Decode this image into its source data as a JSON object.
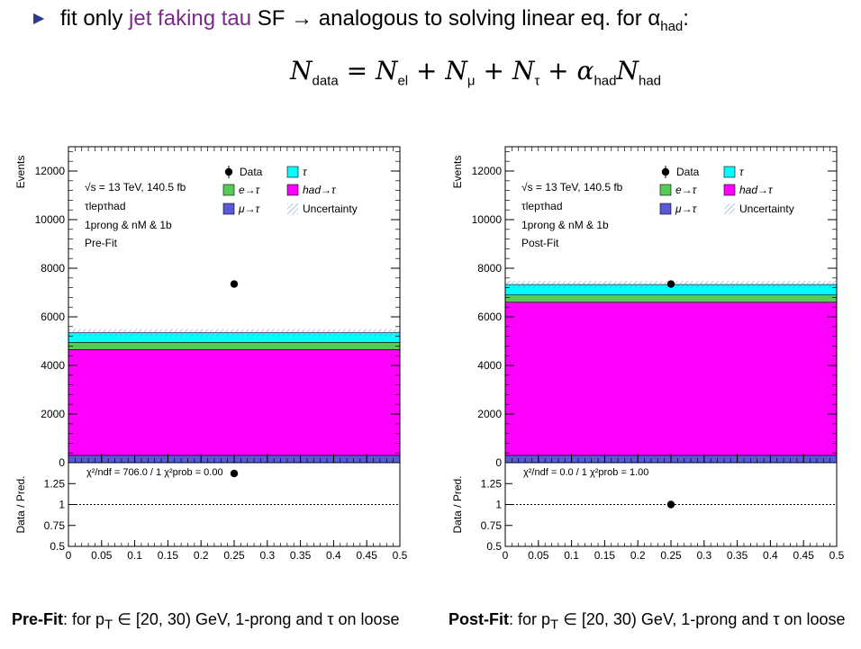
{
  "slide": {
    "bullet_pre": "fit only ",
    "bullet_highlight": "jet faking tau",
    "bullet_post": " SF → analogous to solving linear eq. for α",
    "bullet_sub": "had",
    "bullet_end": ":",
    "equation": {
      "lhs": "N",
      "lhs_sub": "data",
      "t1": "N",
      "t1_sub": "el",
      "t2": "N",
      "t2_sub": "μ",
      "t3": "N",
      "t3_sub": "τ",
      "t4_alpha": "α",
      "t4_alpha_sub": "had",
      "t4": "N",
      "t4_sub": "had"
    }
  },
  "captions": {
    "left_bold": "Pre-Fit",
    "left_text": ": for p",
    "left_sub": "T",
    "left_rest": " ∈ [20, 30) GeV, 1-prong and τ on loose",
    "right_bold": "Post-Fit",
    "right_text": ": for p",
    "right_sub": "T",
    "right_rest": " ∈ [20, 30) GeV, 1-prong and τ on loose"
  },
  "chart_data": [
    {
      "type": "bar",
      "stacked": true,
      "panel_label": "Pre-Fit",
      "ylabel": "Events",
      "ratio_ylabel": "Data / Pred.",
      "xlim": [
        0,
        0.5
      ],
      "ylim": [
        0,
        13000
      ],
      "ratio_ylim": [
        0.5,
        1.5
      ],
      "x_ticks": [
        "0",
        "0.05",
        "0.1",
        "0.15",
        "0.2",
        "0.25",
        "0.3",
        "0.35",
        "0.4",
        "0.45",
        "0.5"
      ],
      "y_ticks": [
        "0",
        "2000",
        "4000",
        "6000",
        "8000",
        "10000",
        "12000"
      ],
      "ratio_ticks": [
        "0.5",
        "0.75",
        "1",
        "1.25"
      ],
      "annotations": [
        "√s = 13 TeV, 140.5 fb",
        "τlepτhad",
        "1prong & nM & 1b",
        "Pre-Fit"
      ],
      "series": [
        {
          "name": "μ→τ",
          "color": "#5a5ad6",
          "values": [
            300
          ]
        },
        {
          "name": "had→τ",
          "color": "#ff00ff",
          "values": [
            4350
          ]
        },
        {
          "name": "e→τ",
          "color": "#55cc55",
          "values": [
            300
          ]
        },
        {
          "name": "τ",
          "color": "#00ffff",
          "values": [
            400
          ]
        }
      ],
      "data": {
        "name": "Data",
        "x": 0.25,
        "y": 7350
      },
      "ratio": {
        "x": 0.25,
        "y": 1.37
      },
      "stats": "χ²/ndf = 706.0 / 1   χ²prob = 0.00",
      "legend": [
        "Data",
        "τ",
        "e→τ",
        "had→τ",
        "μ→τ",
        "Uncertainty"
      ]
    },
    {
      "type": "bar",
      "stacked": true,
      "panel_label": "Post-Fit",
      "ylabel": "Events",
      "ratio_ylabel": "Data / Pred.",
      "xlim": [
        0,
        0.5
      ],
      "ylim": [
        0,
        13000
      ],
      "ratio_ylim": [
        0.5,
        1.5
      ],
      "x_ticks": [
        "0",
        "0.05",
        "0.1",
        "0.15",
        "0.2",
        "0.25",
        "0.3",
        "0.35",
        "0.4",
        "0.45",
        "0.5"
      ],
      "y_ticks": [
        "0",
        "2000",
        "4000",
        "6000",
        "8000",
        "10000",
        "12000"
      ],
      "ratio_ticks": [
        "0.5",
        "0.75",
        "1",
        "1.25"
      ],
      "annotations": [
        "√s = 13 TeV, 140.5 fb",
        "τlepτhad",
        "1prong & nM & 1b",
        "Post-Fit"
      ],
      "series": [
        {
          "name": "μ→τ",
          "color": "#5a5ad6",
          "values": [
            300
          ]
        },
        {
          "name": "had→τ",
          "color": "#ff00ff",
          "values": [
            6300
          ]
        },
        {
          "name": "e→τ",
          "color": "#55cc55",
          "values": [
            300
          ]
        },
        {
          "name": "τ",
          "color": "#00ffff",
          "values": [
            430
          ]
        }
      ],
      "data": {
        "name": "Data",
        "x": 0.25,
        "y": 7350
      },
      "ratio": {
        "x": 0.25,
        "y": 1.0
      },
      "stats": "χ²/ndf = 0.0 / 1   χ²prob = 1.00",
      "legend": [
        "Data",
        "τ",
        "e→τ",
        "had→τ",
        "μ→τ",
        "Uncertainty"
      ]
    }
  ]
}
